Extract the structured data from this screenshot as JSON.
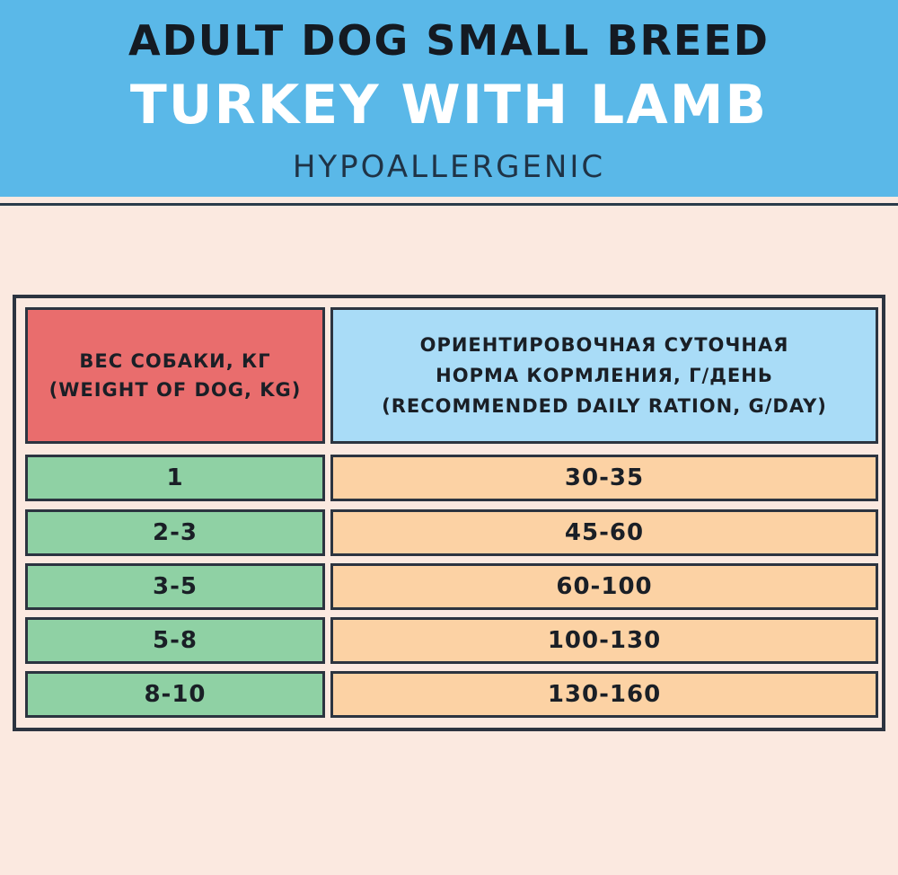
{
  "header": {
    "line1": "ADULT DOG SMALL BREED",
    "line2": "TURKEY WITH LAMB",
    "line3": "HYPOALLERGENIC"
  },
  "table": {
    "weight_header": [
      "ВЕС СОБАКИ, КГ",
      "(WEIGHT OF DOG, KG)"
    ],
    "ration_header": [
      "ОРИЕНТИРОВОЧНАЯ СУТОЧНАЯ",
      "НОРМА КОРМЛЕНИЯ, Г/ДЕНЬ",
      "(RECOMMENDED DAILY RATION, G/DAY)"
    ],
    "rows": [
      {
        "weight": "1",
        "ration": "30-35"
      },
      {
        "weight": "2-3",
        "ration": "45-60"
      },
      {
        "weight": "3-5",
        "ration": "60-100"
      },
      {
        "weight": "5-8",
        "ration": "100-130"
      },
      {
        "weight": "8-10",
        "ration": "130-160"
      }
    ]
  },
  "colors": {
    "header_bg": "#5ab8e8",
    "page_bg": "#fbe9e0",
    "weight_header_bg": "#e96d6d",
    "ration_header_bg": "#a9dcf7",
    "weight_cell_bg": "#8fd1a4",
    "ration_cell_bg": "#fcd2a4"
  }
}
